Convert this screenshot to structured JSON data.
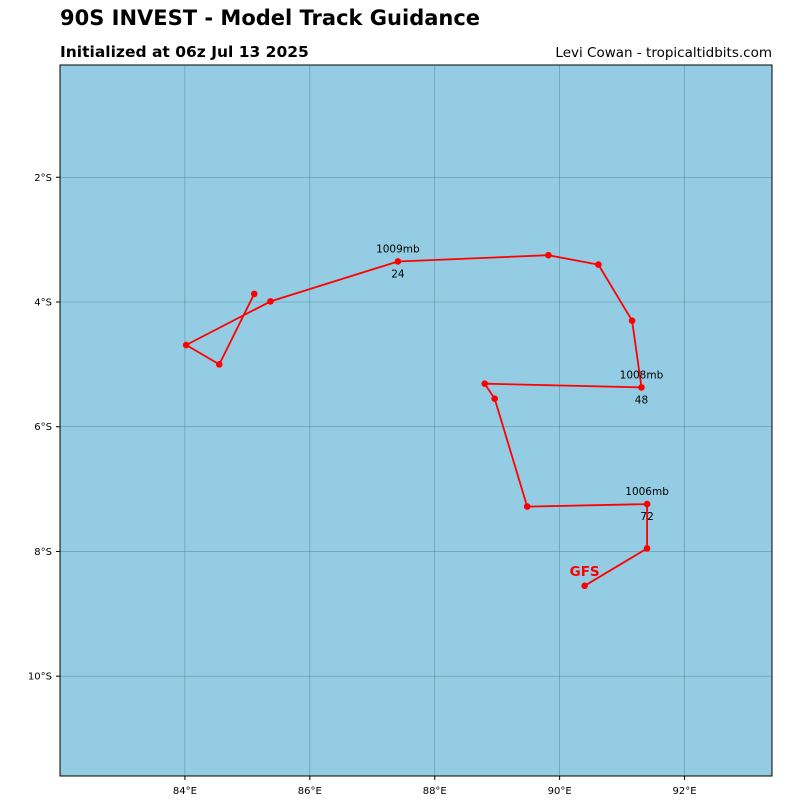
{
  "header": {
    "title": "90S INVEST - Model Track Guidance",
    "subtitle": "Initialized at 06z Jul 13 2025",
    "credit": "Levi Cowan - tropicaltidbits.com"
  },
  "colors": {
    "ocean": "#94cde3",
    "gridline": "#4d7f8c",
    "track": "#ff0000",
    "frame": "#000000"
  },
  "chart_data": {
    "type": "map-track",
    "lon_range": [
      82.0,
      93.4
    ],
    "lat_range": [
      -11.6,
      -0.2
    ],
    "x_ticks": [
      {
        "value": 84,
        "label": "84°E"
      },
      {
        "value": 86,
        "label": "86°E"
      },
      {
        "value": 88,
        "label": "88°E"
      },
      {
        "value": 90,
        "label": "90°E"
      },
      {
        "value": 92,
        "label": "92°E"
      }
    ],
    "y_ticks": [
      {
        "value": -2,
        "label": "2°S"
      },
      {
        "value": -4,
        "label": "4°S"
      },
      {
        "value": -6,
        "label": "6°S"
      },
      {
        "value": -8,
        "label": "8°S"
      },
      {
        "value": -10,
        "label": "10°S"
      }
    ],
    "grid": true,
    "series": [
      {
        "name": "GFS",
        "color": "#ff0000",
        "track": [
          {
            "lon": 90.4,
            "lat": -8.55
          },
          {
            "lon": 91.4,
            "lat": -7.95
          },
          {
            "lon": 91.4,
            "lat": -7.24
          },
          {
            "lon": 89.48,
            "lat": -7.28
          },
          {
            "lon": 88.96,
            "lat": -5.55
          },
          {
            "lon": 88.8,
            "lat": -5.31
          },
          {
            "lon": 91.31,
            "lat": -5.37
          },
          {
            "lon": 91.16,
            "lat": -4.3
          },
          {
            "lon": 90.62,
            "lat": -3.4
          },
          {
            "lon": 89.82,
            "lat": -3.25
          },
          {
            "lon": 87.41,
            "lat": -3.35
          },
          {
            "lon": 85.37,
            "lat": -3.99
          },
          {
            "lon": 84.02,
            "lat": -4.69
          },
          {
            "lon": 84.55,
            "lat": -5.0
          },
          {
            "lon": 85.11,
            "lat": -3.87
          }
        ]
      }
    ],
    "annotations": [
      {
        "lon": 87.41,
        "lat": -3.35,
        "pressure": "1009mb",
        "hour": "24"
      },
      {
        "lon": 91.31,
        "lat": -5.37,
        "pressure": "1008mb",
        "hour": "48"
      },
      {
        "lon": 91.4,
        "lat": -7.24,
        "pressure": "1006mb",
        "hour": "72"
      }
    ]
  }
}
